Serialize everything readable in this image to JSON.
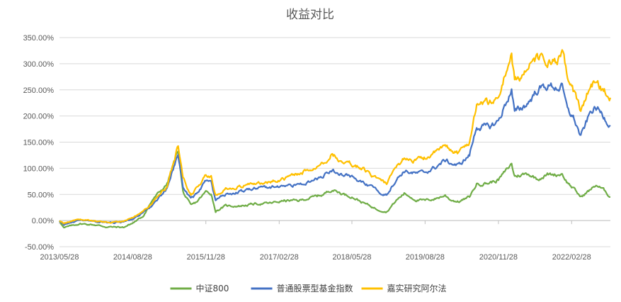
{
  "chart_data": {
    "type": "line",
    "title": "收益对比",
    "xlabel": "",
    "ylabel": "",
    "ylim": [
      -50,
      350
    ],
    "yticks": [
      -50,
      0,
      50,
      100,
      150,
      200,
      250,
      300,
      350
    ],
    "ytick_labels": [
      "-50.00%",
      "0.00%",
      "50.00%",
      "100.00%",
      "150.00%",
      "200.00%",
      "250.00%",
      "300.00%",
      "350.00%"
    ],
    "xlim": [
      "2013/05/28",
      "2022/10/28"
    ],
    "xticks": [
      "2013/05/28",
      "2014/08/28",
      "2015/11/28",
      "2017/02/28",
      "2018/05/28",
      "2019/08/28",
      "2020/11/28",
      "2022/02/28"
    ],
    "grid": true,
    "legend_position": "bottom",
    "series": [
      {
        "name": "中证800",
        "color": "#70AD47",
        "points": [
          [
            "2013/05/28",
            0
          ],
          [
            "2013/06/25",
            -14
          ],
          [
            "2013/09/30",
            -6
          ],
          [
            "2013/12/31",
            -8
          ],
          [
            "2014/03/20",
            -12
          ],
          [
            "2014/06/30",
            -13
          ],
          [
            "2014/08/28",
            -5
          ],
          [
            "2014/10/31",
            8
          ],
          [
            "2014/12/31",
            40
          ],
          [
            "2015/03/31",
            70
          ],
          [
            "2015/06/08",
            135
          ],
          [
            "2015/07/08",
            55
          ],
          [
            "2015/08/26",
            28
          ],
          [
            "2015/09/30",
            35
          ],
          [
            "2015/11/28",
            55
          ],
          [
            "2015/12/31",
            52
          ],
          [
            "2016/01/28",
            18
          ],
          [
            "2016/03/31",
            28
          ],
          [
            "2016/06/30",
            28
          ],
          [
            "2016/09/30",
            32
          ],
          [
            "2016/12/31",
            33
          ],
          [
            "2017/03/31",
            38
          ],
          [
            "2017/06/30",
            38
          ],
          [
            "2017/09/30",
            45
          ],
          [
            "2017/11/30",
            50
          ],
          [
            "2018/01/26",
            60
          ],
          [
            "2018/02/28",
            55
          ],
          [
            "2018/04/30",
            48
          ],
          [
            "2018/05/28",
            46
          ],
          [
            "2018/07/31",
            35
          ],
          [
            "2018/10/31",
            22
          ],
          [
            "2018/12/31",
            17
          ],
          [
            "2019/02/28",
            38
          ],
          [
            "2019/04/20",
            52
          ],
          [
            "2019/06/30",
            40
          ],
          [
            "2019/08/28",
            38
          ],
          [
            "2019/10/31",
            42
          ],
          [
            "2019/12/31",
            48
          ],
          [
            "2020/02/03",
            40
          ],
          [
            "2020/03/23",
            36
          ],
          [
            "2020/05/31",
            45
          ],
          [
            "2020/07/15",
            70
          ],
          [
            "2020/09/30",
            72
          ],
          [
            "2020/11/28",
            78
          ],
          [
            "2020/12/31",
            90
          ],
          [
            "2021/02/18",
            108
          ],
          [
            "2021/03/09",
            85
          ],
          [
            "2021/05/31",
            90
          ],
          [
            "2021/07/28",
            80
          ],
          [
            "2021/09/30",
            88
          ],
          [
            "2021/11/30",
            88
          ],
          [
            "2021/12/31",
            90
          ],
          [
            "2022/01/28",
            75
          ],
          [
            "2022/03/15",
            60
          ],
          [
            "2022/04/26",
            45
          ],
          [
            "2022/06/30",
            60
          ],
          [
            "2022/07/31",
            68
          ],
          [
            "2022/08/31",
            62
          ],
          [
            "2022/09/30",
            55
          ],
          [
            "2022/10/28",
            45
          ]
        ]
      },
      {
        "name": "普通股票型基金指数",
        "color": "#4472C4",
        "points": [
          [
            "2013/05/28",
            0
          ],
          [
            "2013/06/25",
            -8
          ],
          [
            "2013/09/30",
            0
          ],
          [
            "2013/12/31",
            -2
          ],
          [
            "2014/03/20",
            -4
          ],
          [
            "2014/06/30",
            -3
          ],
          [
            "2014/08/28",
            5
          ],
          [
            "2014/10/31",
            14
          ],
          [
            "2014/12/31",
            30
          ],
          [
            "2015/03/31",
            60
          ],
          [
            "2015/06/08",
            130
          ],
          [
            "2015/07/08",
            65
          ],
          [
            "2015/08/26",
            42
          ],
          [
            "2015/09/30",
            50
          ],
          [
            "2015/11/28",
            75
          ],
          [
            "2015/12/31",
            72
          ],
          [
            "2016/01/28",
            38
          ],
          [
            "2016/03/31",
            50
          ],
          [
            "2016/06/30",
            55
          ],
          [
            "2016/09/30",
            62
          ],
          [
            "2016/12/31",
            64
          ],
          [
            "2017/03/31",
            67
          ],
          [
            "2017/06/30",
            68
          ],
          [
            "2017/09/30",
            76
          ],
          [
            "2017/11/30",
            85
          ],
          [
            "2018/01/26",
            98
          ],
          [
            "2018/02/28",
            90
          ],
          [
            "2018/04/30",
            88
          ],
          [
            "2018/05/28",
            83
          ],
          [
            "2018/07/31",
            72
          ],
          [
            "2018/10/31",
            58
          ],
          [
            "2018/12/31",
            50
          ],
          [
            "2019/02/28",
            78
          ],
          [
            "2019/04/20",
            95
          ],
          [
            "2019/06/30",
            90
          ],
          [
            "2019/08/28",
            92
          ],
          [
            "2019/10/31",
            102
          ],
          [
            "2019/12/31",
            115
          ],
          [
            "2020/02/03",
            110
          ],
          [
            "2020/03/23",
            105
          ],
          [
            "2020/05/31",
            125
          ],
          [
            "2020/07/15",
            180
          ],
          [
            "2020/09/30",
            178
          ],
          [
            "2020/11/28",
            190
          ],
          [
            "2020/12/31",
            215
          ],
          [
            "2021/02/18",
            250
          ],
          [
            "2021/03/09",
            205
          ],
          [
            "2021/05/31",
            225
          ],
          [
            "2021/07/28",
            250
          ],
          [
            "2021/09/30",
            258
          ],
          [
            "2021/11/30",
            255
          ],
          [
            "2021/12/31",
            255
          ],
          [
            "2022/01/28",
            215
          ],
          [
            "2022/03/15",
            195
          ],
          [
            "2022/04/26",
            160
          ],
          [
            "2022/06/30",
            210
          ],
          [
            "2022/07/31",
            215
          ],
          [
            "2022/08/31",
            205
          ],
          [
            "2022/09/30",
            195
          ],
          [
            "2022/10/28",
            182
          ]
        ]
      },
      {
        "name": "嘉实研究阿尔法",
        "color": "#FFC000",
        "points": [
          [
            "2013/05/28",
            0
          ],
          [
            "2013/06/25",
            -5
          ],
          [
            "2013/09/30",
            3
          ],
          [
            "2013/12/31",
            -1
          ],
          [
            "2014/03/20",
            -3
          ],
          [
            "2014/06/30",
            -2
          ],
          [
            "2014/08/28",
            6
          ],
          [
            "2014/10/31",
            16
          ],
          [
            "2014/12/31",
            35
          ],
          [
            "2015/03/31",
            65
          ],
          [
            "2015/06/08",
            145
          ],
          [
            "2015/07/08",
            80
          ],
          [
            "2015/08/26",
            50
          ],
          [
            "2015/09/30",
            60
          ],
          [
            "2015/11/28",
            88
          ],
          [
            "2015/12/31",
            85
          ],
          [
            "2016/01/28",
            48
          ],
          [
            "2016/03/31",
            60
          ],
          [
            "2016/06/30",
            65
          ],
          [
            "2016/09/30",
            72
          ],
          [
            "2016/12/31",
            74
          ],
          [
            "2017/03/31",
            80
          ],
          [
            "2017/06/30",
            90
          ],
          [
            "2017/09/30",
            100
          ],
          [
            "2017/11/30",
            112
          ],
          [
            "2018/01/26",
            128
          ],
          [
            "2018/02/28",
            118
          ],
          [
            "2018/04/30",
            115
          ],
          [
            "2018/05/28",
            108
          ],
          [
            "2018/07/31",
            100
          ],
          [
            "2018/10/31",
            80
          ],
          [
            "2018/12/31",
            70
          ],
          [
            "2019/02/28",
            100
          ],
          [
            "2019/04/20",
            120
          ],
          [
            "2019/06/30",
            115
          ],
          [
            "2019/08/28",
            120
          ],
          [
            "2019/10/31",
            130
          ],
          [
            "2019/12/31",
            142
          ],
          [
            "2020/02/03",
            135
          ],
          [
            "2020/03/23",
            130
          ],
          [
            "2020/05/31",
            150
          ],
          [
            "2020/07/15",
            225
          ],
          [
            "2020/09/30",
            225
          ],
          [
            "2020/11/28",
            235
          ],
          [
            "2020/12/31",
            270
          ],
          [
            "2021/02/18",
            320
          ],
          [
            "2021/03/09",
            265
          ],
          [
            "2021/05/31",
            290
          ],
          [
            "2021/07/28",
            310
          ],
          [
            "2021/09/30",
            305
          ],
          [
            "2021/11/30",
            300
          ],
          [
            "2021/12/31",
            318
          ],
          [
            "2022/01/28",
            280
          ],
          [
            "2022/03/15",
            245
          ],
          [
            "2022/04/26",
            210
          ],
          [
            "2022/06/30",
            260
          ],
          [
            "2022/07/31",
            268
          ],
          [
            "2022/08/31",
            255
          ],
          [
            "2022/09/30",
            245
          ],
          [
            "2022/10/28",
            235
          ]
        ]
      }
    ]
  }
}
